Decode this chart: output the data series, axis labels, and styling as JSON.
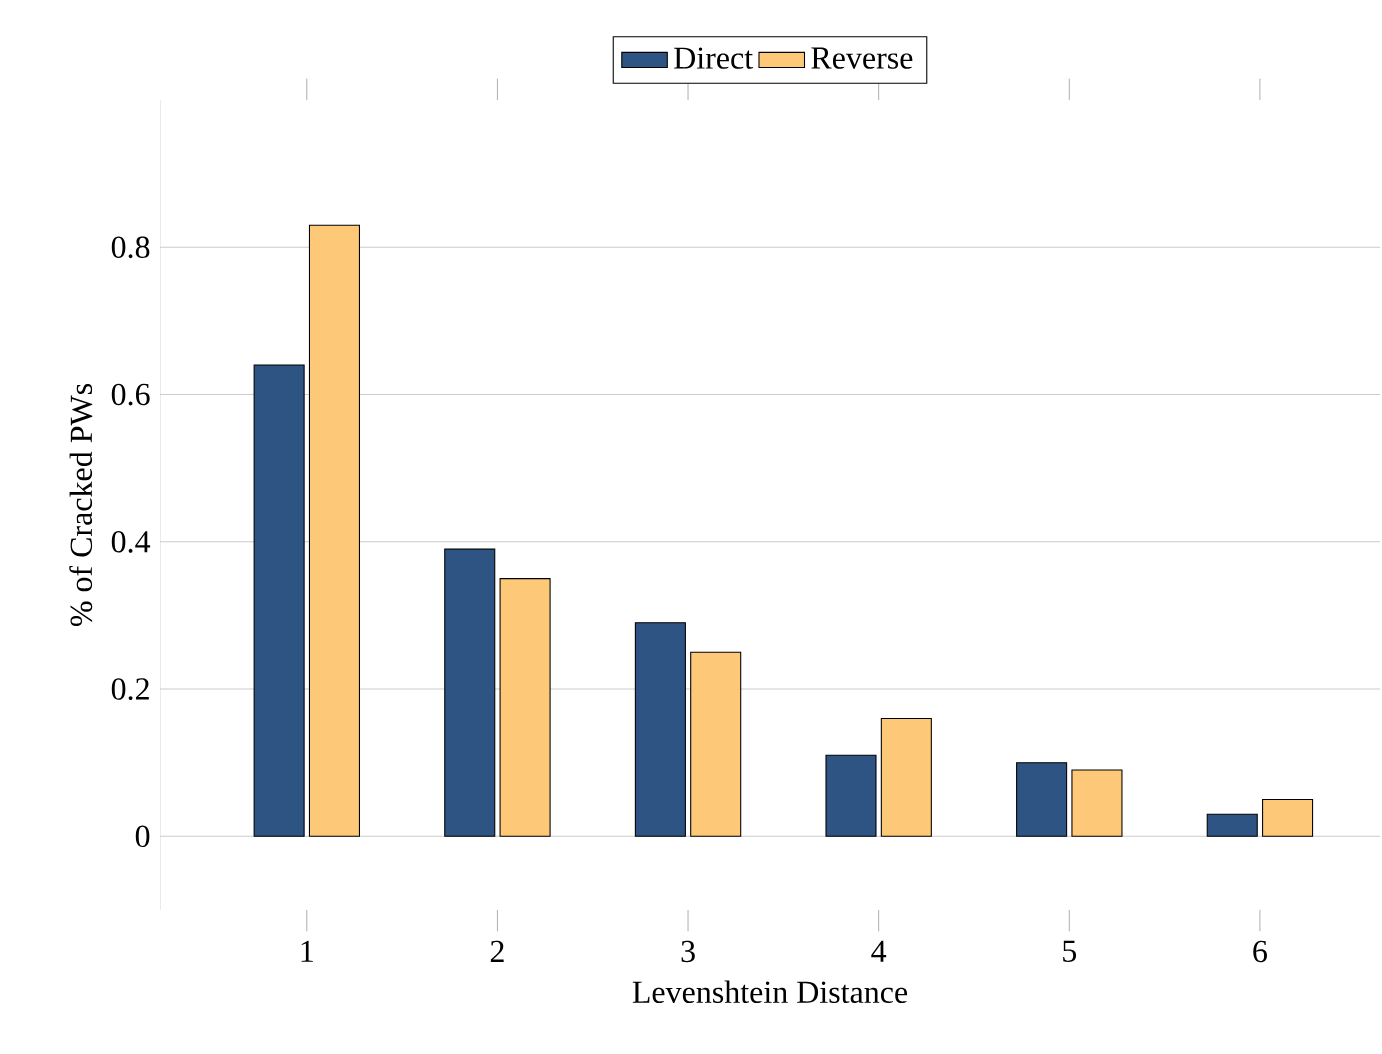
{
  "chart_data": {
    "type": "bar",
    "xlabel": "Levenshtein Distance",
    "ylabel": "% of Cracked PWs",
    "categories": [
      "1",
      "2",
      "3",
      "4",
      "5",
      "6"
    ],
    "series": [
      {
        "name": "Direct",
        "color": "#2d5482",
        "values": [
          0.64,
          0.39,
          0.29,
          0.11,
          0.1,
          0.03
        ]
      },
      {
        "name": "Reverse",
        "color": "#fdc877",
        "values": [
          0.83,
          0.35,
          0.25,
          0.16,
          0.09,
          0.05
        ]
      }
    ],
    "ylim": [
      -0.1,
      1
    ],
    "yticks": [
      0,
      0.2,
      0.4,
      0.6,
      0.8
    ],
    "grid": "y",
    "legend": "top"
  }
}
